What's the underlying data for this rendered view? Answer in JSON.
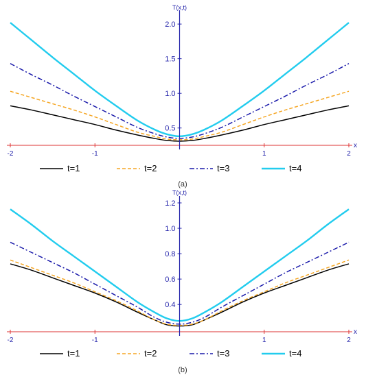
{
  "chart_data": [
    {
      "type": "line",
      "panel_label": "(a)",
      "ylabel": "T(x,t)",
      "xlabel": "x",
      "xlim": [
        -2,
        2
      ],
      "ylim": [
        0.25,
        2.1
      ],
      "xticks": [
        -2,
        -1,
        1,
        2
      ],
      "xtick_labels": [
        "-2",
        "-1",
        "1",
        "2"
      ],
      "yticks": [
        0.5,
        1.0,
        1.5,
        2.0
      ],
      "ytick_labels": [
        "0.5",
        "1.0",
        "1.5",
        "2.0"
      ],
      "legend_position": "bottom",
      "x": [
        -2,
        -1.75,
        -1.5,
        -1.25,
        -1,
        -0.75,
        -0.5,
        -0.3,
        -0.15,
        0,
        0.15,
        0.3,
        0.5,
        0.75,
        1,
        1.25,
        1.5,
        1.75,
        2
      ],
      "series": [
        {
          "name": "t=1",
          "color": "#000000",
          "dash": "solid",
          "values": [
            0.82,
            0.76,
            0.69,
            0.62,
            0.55,
            0.47,
            0.4,
            0.35,
            0.32,
            0.31,
            0.32,
            0.35,
            0.4,
            0.47,
            0.55,
            0.62,
            0.69,
            0.76,
            0.82
          ]
        },
        {
          "name": "t=2",
          "color": "#f5a623",
          "dash": "dashed",
          "values": [
            1.03,
            0.94,
            0.85,
            0.76,
            0.66,
            0.55,
            0.44,
            0.38,
            0.34,
            0.33,
            0.34,
            0.38,
            0.44,
            0.55,
            0.66,
            0.76,
            0.85,
            0.94,
            1.03
          ]
        },
        {
          "name": "t=3",
          "color": "#1a1aaa",
          "dash": "dashdot",
          "values": [
            1.43,
            1.27,
            1.12,
            0.96,
            0.81,
            0.66,
            0.51,
            0.42,
            0.37,
            0.35,
            0.37,
            0.42,
            0.51,
            0.66,
            0.81,
            0.96,
            1.12,
            1.27,
            1.43
          ]
        },
        {
          "name": "t=4",
          "color": "#22ccee",
          "dash": "solid",
          "values": [
            2.02,
            1.77,
            1.52,
            1.28,
            1.04,
            0.82,
            0.61,
            0.48,
            0.41,
            0.38,
            0.41,
            0.48,
            0.61,
            0.82,
            1.04,
            1.28,
            1.52,
            1.77,
            2.02
          ]
        }
      ]
    },
    {
      "type": "line",
      "panel_label": "(b)",
      "ylabel": "T(x,t)",
      "xlabel": "x",
      "xlim": [
        -2,
        2
      ],
      "ylim": [
        0.185,
        1.2
      ],
      "xticks": [
        -2,
        -1,
        1,
        2
      ],
      "xtick_labels": [
        "-2",
        "-1",
        "1",
        "2"
      ],
      "yticks": [
        0.4,
        0.6,
        0.8,
        1.0,
        1.2
      ],
      "ytick_labels": [
        "0.4",
        "0.6",
        "0.8",
        "1.0",
        "1.2"
      ],
      "legend_position": "bottom",
      "x": [
        -2,
        -1.75,
        -1.5,
        -1.25,
        -1,
        -0.75,
        -0.5,
        -0.3,
        -0.15,
        0,
        0.15,
        0.3,
        0.5,
        0.75,
        1,
        1.25,
        1.5,
        1.75,
        2
      ],
      "series": [
        {
          "name": "t=1",
          "color": "#000000",
          "dash": "solid",
          "values": [
            0.72,
            0.67,
            0.61,
            0.55,
            0.49,
            0.42,
            0.34,
            0.28,
            0.24,
            0.23,
            0.24,
            0.28,
            0.34,
            0.42,
            0.49,
            0.55,
            0.61,
            0.67,
            0.72
          ]
        },
        {
          "name": "t=2",
          "color": "#f5a623",
          "dash": "dashed",
          "values": [
            0.75,
            0.69,
            0.63,
            0.57,
            0.5,
            0.43,
            0.35,
            0.28,
            0.245,
            0.235,
            0.245,
            0.28,
            0.35,
            0.43,
            0.5,
            0.57,
            0.63,
            0.69,
            0.75
          ]
        },
        {
          "name": "t=3",
          "color": "#1a1aaa",
          "dash": "dashdot",
          "values": [
            0.89,
            0.81,
            0.73,
            0.65,
            0.56,
            0.47,
            0.38,
            0.3,
            0.26,
            0.245,
            0.26,
            0.3,
            0.38,
            0.47,
            0.56,
            0.65,
            0.73,
            0.81,
            0.89
          ]
        },
        {
          "name": "t=4",
          "color": "#22ccee",
          "dash": "solid",
          "values": [
            1.15,
            1.03,
            0.9,
            0.78,
            0.66,
            0.54,
            0.42,
            0.34,
            0.29,
            0.27,
            0.29,
            0.34,
            0.42,
            0.54,
            0.66,
            0.78,
            0.9,
            1.03,
            1.15
          ]
        }
      ]
    }
  ],
  "colors": {
    "x_axis": "#dd3333",
    "y_axis": "#2222aa",
    "tick_text": "#2222aa"
  }
}
